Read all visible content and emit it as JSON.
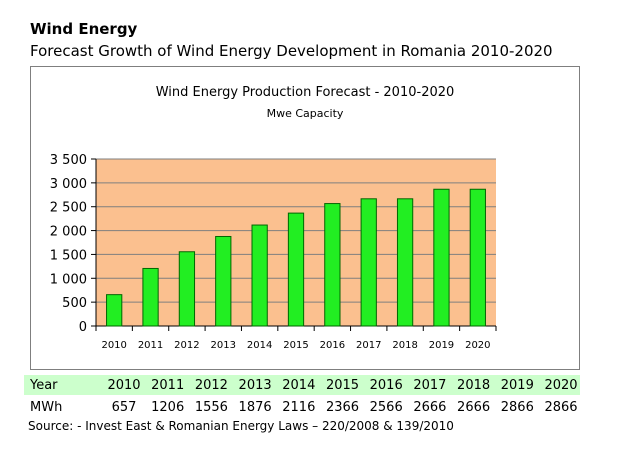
{
  "header": {
    "title": "Wind Energy",
    "subtitle": "Forecast Growth of Wind Energy Development in Romania 2010-2020"
  },
  "chart_data": {
    "type": "bar",
    "title": "Wind Energy Production Forecast - 2010-2020",
    "subtitle": "Mwe Capacity",
    "categories": [
      "2010",
      "2011",
      "2012",
      "2013",
      "2014",
      "2015",
      "2016",
      "2017",
      "2018",
      "2019",
      "2020"
    ],
    "values": [
      657,
      1206,
      1556,
      1876,
      2116,
      2366,
      2566,
      2666,
      2666,
      2866,
      2866
    ],
    "ylim": [
      0,
      3500
    ],
    "yticks": [
      "0",
      "500",
      "1 000",
      "1 500",
      "2 000",
      "2 500",
      "3 000",
      "3 500"
    ],
    "ytick_values": [
      0,
      500,
      1000,
      1500,
      2000,
      2500,
      3000,
      3500
    ],
    "xlabel": "",
    "ylabel": "",
    "grid": true,
    "legend": "none",
    "colors": {
      "plot_background": "#fbc08f",
      "bar_fill": "#22ee22",
      "bar_edge": "#006600",
      "gridline": "#7f7f7f"
    }
  },
  "table": {
    "year_label": "Year",
    "years": [
      "2010",
      "2011",
      "2012",
      "2013",
      "2014",
      "2015",
      "2016",
      "2017",
      "2018",
      "2019",
      "2020"
    ],
    "mwh_label": "MWh",
    "mwh": [
      "657",
      "1206",
      "1556",
      "1876",
      "2116",
      "2366",
      "2566",
      "2666",
      "2666",
      "2866",
      "2866"
    ],
    "year_row_color": "#ccffcc"
  },
  "source": "Source: - Invest East & Romanian Energy Laws – 220/2008 & 139/2010"
}
